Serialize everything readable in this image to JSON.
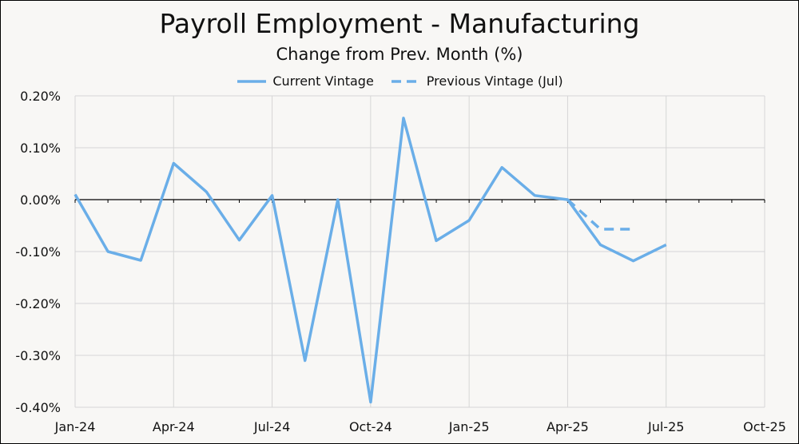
{
  "chart_data": {
    "type": "line",
    "title": "Payroll Employment - Manufacturing",
    "subtitle": "Change from Prev. Month (%)",
    "xlabel": "",
    "ylabel": "",
    "x_tick_labels": [
      "Jan-24",
      "Apr-24",
      "Jul-24",
      "Oct-24",
      "Jan-25",
      "Apr-25",
      "Jul-25",
      "Oct-25"
    ],
    "y_tick_labels": [
      "0.20%",
      "0.10%",
      "0.00%",
      "-0.10%",
      "-0.20%",
      "-0.30%",
      "-0.40%"
    ],
    "ylim": [
      -0.4,
      0.2
    ],
    "xlim": [
      "Jan-24",
      "Oct-25"
    ],
    "grid": true,
    "legend_position": "top-center",
    "series": [
      {
        "name": "Current Vintage",
        "style": "solid",
        "color": "#6aaee8",
        "x": [
          "Jan-24",
          "Feb-24",
          "Mar-24",
          "Apr-24",
          "May-24",
          "Jun-24",
          "Jul-24",
          "Aug-24",
          "Sep-24",
          "Oct-24",
          "Nov-24",
          "Dec-24",
          "Jan-25",
          "Feb-25",
          "Mar-25",
          "Apr-25",
          "May-25",
          "Jun-25",
          "Jul-25"
        ],
        "values": [
          0.01,
          -0.1,
          -0.117,
          0.07,
          0.015,
          -0.078,
          0.008,
          -0.31,
          0.0,
          -0.39,
          0.157,
          -0.079,
          -0.04,
          0.062,
          0.008,
          0.0,
          -0.087,
          -0.118,
          -0.087
        ]
      },
      {
        "name": "Previous Vintage (Jul)",
        "style": "dashed",
        "color": "#6aaee8",
        "x": [
          "Apr-25",
          "May-25",
          "Jun-25"
        ],
        "values": [
          0.0,
          -0.057,
          -0.057
        ]
      }
    ]
  }
}
